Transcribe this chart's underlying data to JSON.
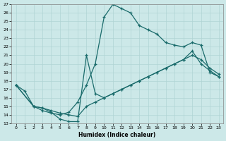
{
  "xlabel": "Humidex (Indice chaleur)",
  "xlim": [
    -0.5,
    23.5
  ],
  "ylim": [
    13,
    27
  ],
  "xticks": [
    0,
    1,
    2,
    3,
    4,
    5,
    6,
    7,
    8,
    9,
    10,
    11,
    12,
    13,
    14,
    15,
    16,
    17,
    18,
    19,
    20,
    21,
    22,
    23
  ],
  "yticks": [
    13,
    14,
    15,
    16,
    17,
    18,
    19,
    20,
    21,
    22,
    23,
    24,
    25,
    26,
    27
  ],
  "bg_color": "#cce8e8",
  "grid_color": "#b0d4d4",
  "line_color": "#1a6b6b",
  "curves": [
    {
      "x": [
        0,
        2,
        3,
        4,
        5,
        6,
        7,
        8,
        9,
        10,
        11,
        12,
        13,
        14,
        15,
        16,
        17,
        18,
        19,
        20,
        21,
        22,
        23
      ],
      "y": [
        17.5,
        15.0,
        14.5,
        14.2,
        14.0,
        14.3,
        15.5,
        17.5,
        20.0,
        25.5,
        27.0,
        26.5,
        26.0,
        24.5,
        24.0,
        23.5,
        22.5,
        22.2,
        22.0,
        22.5,
        22.2,
        19.0,
        18.5
      ]
    },
    {
      "x": [
        0,
        1,
        2,
        3,
        4,
        5,
        6,
        7,
        8,
        9,
        10,
        11,
        12,
        13,
        14,
        15,
        16,
        17,
        18,
        19,
        20,
        21,
        22,
        23
      ],
      "y": [
        17.5,
        16.8,
        15.0,
        14.8,
        14.3,
        13.5,
        13.2,
        13.2,
        21.0,
        16.5,
        16.0,
        16.5,
        17.0,
        17.5,
        18.0,
        18.5,
        19.0,
        19.5,
        20.0,
        20.5,
        21.5,
        20.0,
        19.2,
        18.5
      ]
    },
    {
      "x": [
        0,
        2,
        3,
        4,
        5,
        6,
        7,
        8,
        9,
        10,
        11,
        12,
        13,
        14,
        15,
        16,
        17,
        18,
        19,
        20,
        21,
        22,
        23
      ],
      "y": [
        17.5,
        15.0,
        14.8,
        14.5,
        14.2,
        14.0,
        13.8,
        15.0,
        15.5,
        16.0,
        16.5,
        17.0,
        17.5,
        18.0,
        18.5,
        19.0,
        19.5,
        20.0,
        20.5,
        21.0,
        20.5,
        19.5,
        18.8
      ]
    }
  ]
}
